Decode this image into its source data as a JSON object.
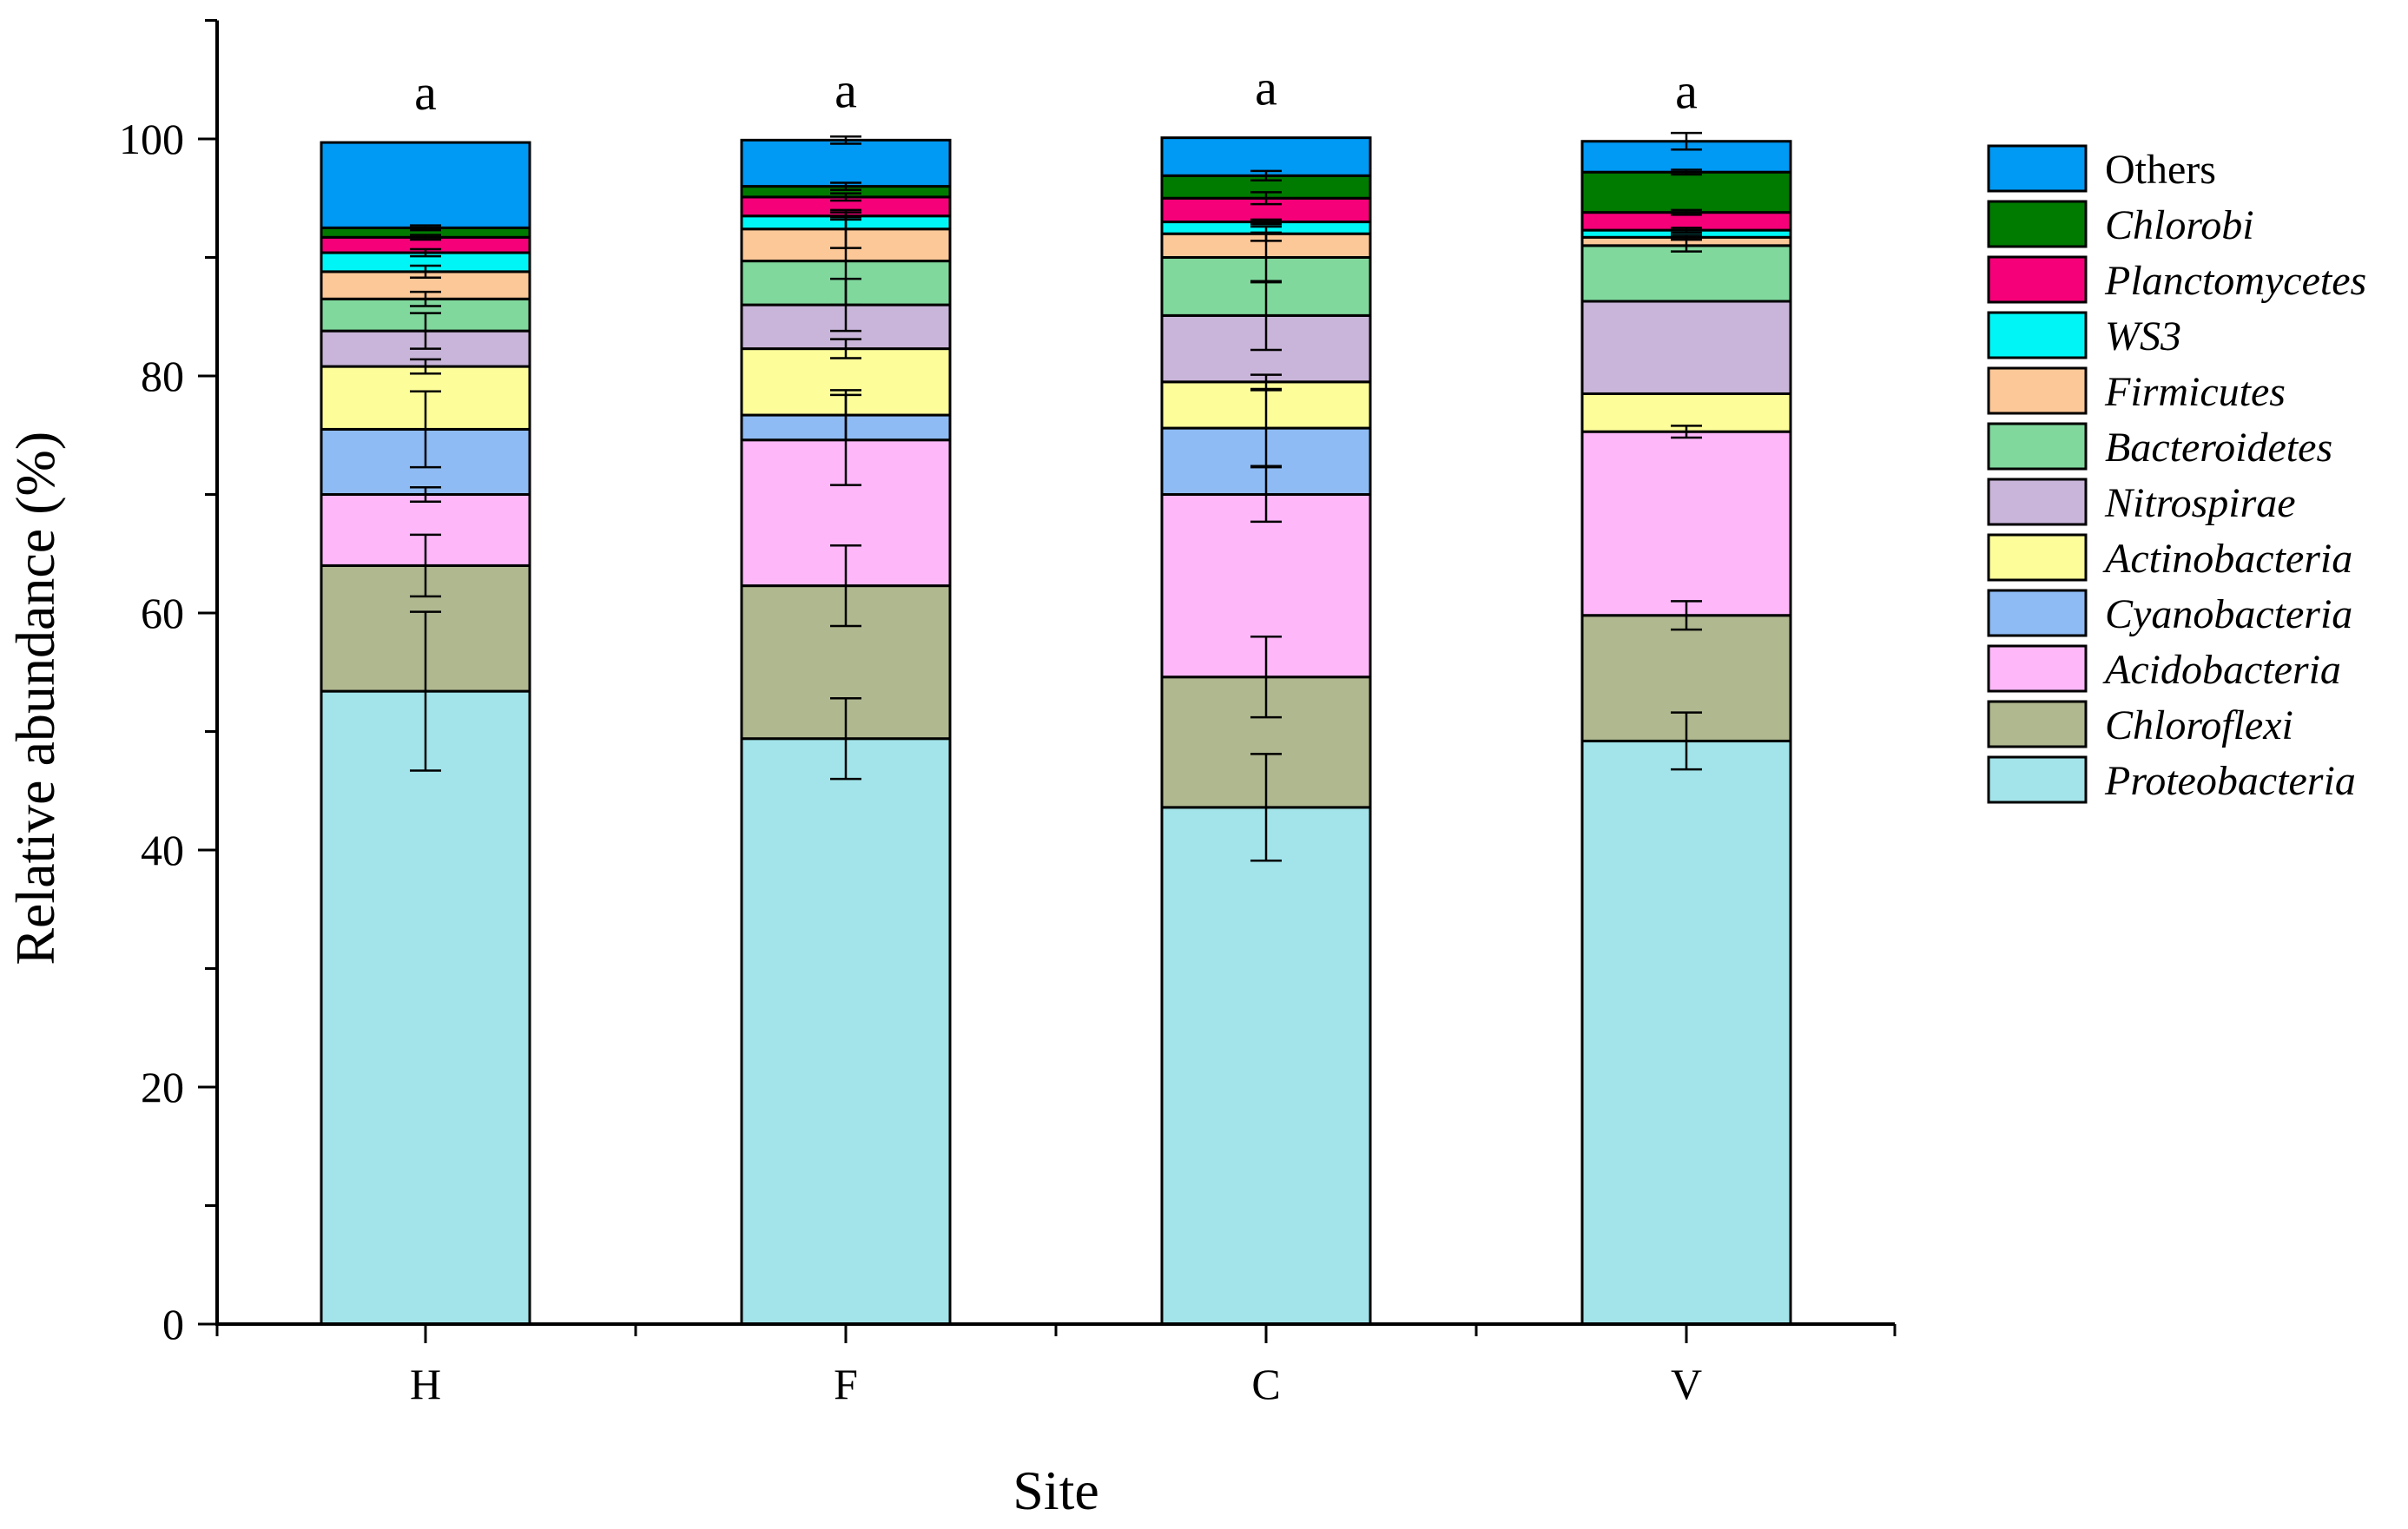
{
  "chart_data": {
    "type": "bar",
    "stacked": true,
    "xlabel": "Site",
    "ylabel": "Relative abundance (%)",
    "ylim": [
      0,
      110
    ],
    "yticks": [
      0,
      20,
      40,
      60,
      80,
      100
    ],
    "categories": [
      "H",
      "F",
      "C",
      "V"
    ],
    "significance_labels": [
      "a",
      "a",
      "a",
      "a"
    ],
    "legend_position": "right",
    "series": [
      {
        "name": "Proteobacteria",
        "italic": true,
        "color": "#a2e4ea",
        "values": [
          53.4,
          49.4,
          43.6,
          49.2
        ],
        "errors": [
          6.7,
          3.4,
          4.5,
          2.4
        ]
      },
      {
        "name": "Chloroflexi",
        "italic": true,
        "color": "#b0b890",
        "values": [
          10.6,
          12.9,
          11.0,
          10.6
        ],
        "errors": [
          2.6,
          3.4,
          3.4,
          1.2
        ]
      },
      {
        "name": "Acidobacteria",
        "italic": true,
        "color": "#feb8fa",
        "values": [
          6.0,
          12.3,
          15.4,
          15.5
        ],
        "errors": [
          0.6,
          3.8,
          2.3,
          0.5
        ]
      },
      {
        "name": "Cyanobacteria",
        "italic": true,
        "color": "#8ebbf4",
        "values": [
          5.5,
          2.1,
          5.6,
          0.0
        ],
        "errors": [
          3.2,
          2.1,
          3.2,
          0.0
        ]
      },
      {
        "name": "Actinobacteria",
        "italic": true,
        "color": "#fdfd9a",
        "values": [
          5.3,
          5.6,
          3.9,
          3.2
        ],
        "errors": [
          0.6,
          0.8,
          0.6,
          0.0
        ]
      },
      {
        "name": "Nitrospirae",
        "italic": true,
        "color": "#c9b5d9",
        "values": [
          3.0,
          3.7,
          5.6,
          7.8
        ],
        "errors": [
          1.5,
          2.2,
          2.9,
          0.0
        ]
      },
      {
        "name": "Bacteroidetes",
        "italic": true,
        "color": "#80d89d",
        "values": [
          2.7,
          3.7,
          4.9,
          4.7
        ],
        "errors": [
          0.6,
          3.7,
          2.1,
          0.5
        ]
      },
      {
        "name": "Firmicutes",
        "italic": true,
        "color": "#fdc898",
        "values": [
          2.3,
          2.7,
          2.0,
          0.7
        ],
        "errors": [
          0.5,
          1.6,
          0.6,
          0.2
        ]
      },
      {
        "name": "WS3",
        "italic": true,
        "color": "#00f6f6",
        "values": [
          1.6,
          1.1,
          1.0,
          0.6
        ],
        "errors": [
          0.3,
          0.3,
          0.2,
          0.2
        ]
      },
      {
        "name": "Planctomycetes",
        "italic": true,
        "color": "#f50078",
        "values": [
          1.3,
          1.6,
          2.0,
          1.5
        ],
        "errors": [
          0.2,
          0.3,
          0.5,
          0.2
        ]
      },
      {
        "name": "Chlorobi",
        "italic": true,
        "color": "#007b00",
        "values": [
          0.8,
          0.9,
          1.9,
          3.4
        ],
        "errors": [
          0.2,
          0.3,
          0.4,
          0.2
        ]
      },
      {
        "name": "Others",
        "italic": false,
        "color": "#0099f4",
        "values": [
          7.2,
          3.9,
          3.2,
          2.6
        ],
        "errors": [
          0.0,
          0.3,
          0.0,
          0.7
        ]
      }
    ]
  }
}
